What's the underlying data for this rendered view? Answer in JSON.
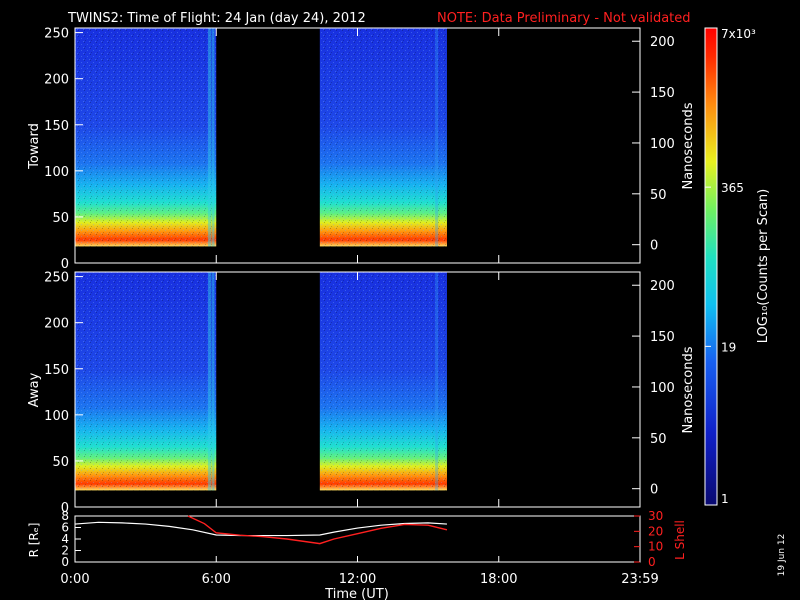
{
  "header": {
    "title": "TWINS2: Time of Flight: 24 Jan (day  24), 2012",
    "note": "NOTE: Data Preliminary - Not validated"
  },
  "colorbar": {
    "label": "LOG₁₀(Counts per Scan)",
    "ticks": [
      {
        "label": "7x10³",
        "value": 7000
      },
      {
        "label": "365",
        "value": 365
      },
      {
        "label": "19",
        "value": 19
      },
      {
        "label": "1",
        "value": 1
      }
    ]
  },
  "colors": {
    "background": "#000000",
    "note": "#ff2020",
    "r_line": "#ffffff",
    "lshell_line": "#ff2020"
  },
  "chart_data": [
    {
      "type": "heatmap",
      "ylabel": "Toward",
      "y2label": "Nanoseconds",
      "ylim": [
        0,
        255
      ],
      "yticks": [
        0,
        50,
        100,
        150,
        200,
        250
      ],
      "y2lim": [
        -18,
        213
      ],
      "y2ticks": [
        0,
        50,
        100,
        150,
        200
      ],
      "xlim": [
        0,
        24
      ],
      "data_intervals": [
        [
          0,
          6
        ],
        [
          10.4,
          15.8
        ]
      ]
    },
    {
      "type": "heatmap",
      "ylabel": "Away",
      "y2label": "Nanoseconds",
      "ylim": [
        0,
        255
      ],
      "yticks": [
        0,
        50,
        100,
        150,
        200,
        250
      ],
      "y2lim": [
        -18,
        213
      ],
      "y2ticks": [
        0,
        50,
        100,
        150,
        200
      ],
      "xlim": [
        0,
        24
      ],
      "data_intervals": [
        [
          0,
          6
        ],
        [
          10.4,
          15.8
        ]
      ]
    },
    {
      "type": "line",
      "ylabel": "R [Rₑ]",
      "y2label": "L Shell",
      "xlabel": "Time (UT)",
      "xlim": [
        0,
        24
      ],
      "xticks": [
        "0:00",
        "6:00",
        "12:00",
        "18:00",
        "23:59"
      ],
      "xtick_values": [
        0,
        6,
        12,
        18,
        24
      ],
      "ylim": [
        0,
        8
      ],
      "yticks": [
        0,
        2,
        4,
        6,
        8
      ],
      "y2lim": [
        0,
        30
      ],
      "y2ticks": [
        0,
        10,
        20,
        30
      ],
      "series": [
        {
          "name": "R",
          "x": [
            0,
            1,
            2,
            3,
            4,
            5,
            6,
            7,
            8,
            9,
            10.4,
            11,
            12,
            13,
            14,
            15,
            15.8
          ],
          "values": [
            6.6,
            6.9,
            6.8,
            6.6,
            6.2,
            5.6,
            4.7,
            4.6,
            4.6,
            4.6,
            4.7,
            5.2,
            5.9,
            6.4,
            6.7,
            6.8,
            6.6
          ]
        },
        {
          "name": "L Shell",
          "x": [
            4.8,
            5.5,
            6,
            7,
            8,
            9,
            10.4,
            11,
            12,
            13,
            14,
            15,
            15.8
          ],
          "values": [
            30,
            25,
            19,
            17.5,
            16.5,
            15,
            12,
            15,
            18.5,
            22,
            24.5,
            24,
            21
          ]
        }
      ]
    }
  ],
  "footer": {
    "date": "19 Jun 12"
  }
}
